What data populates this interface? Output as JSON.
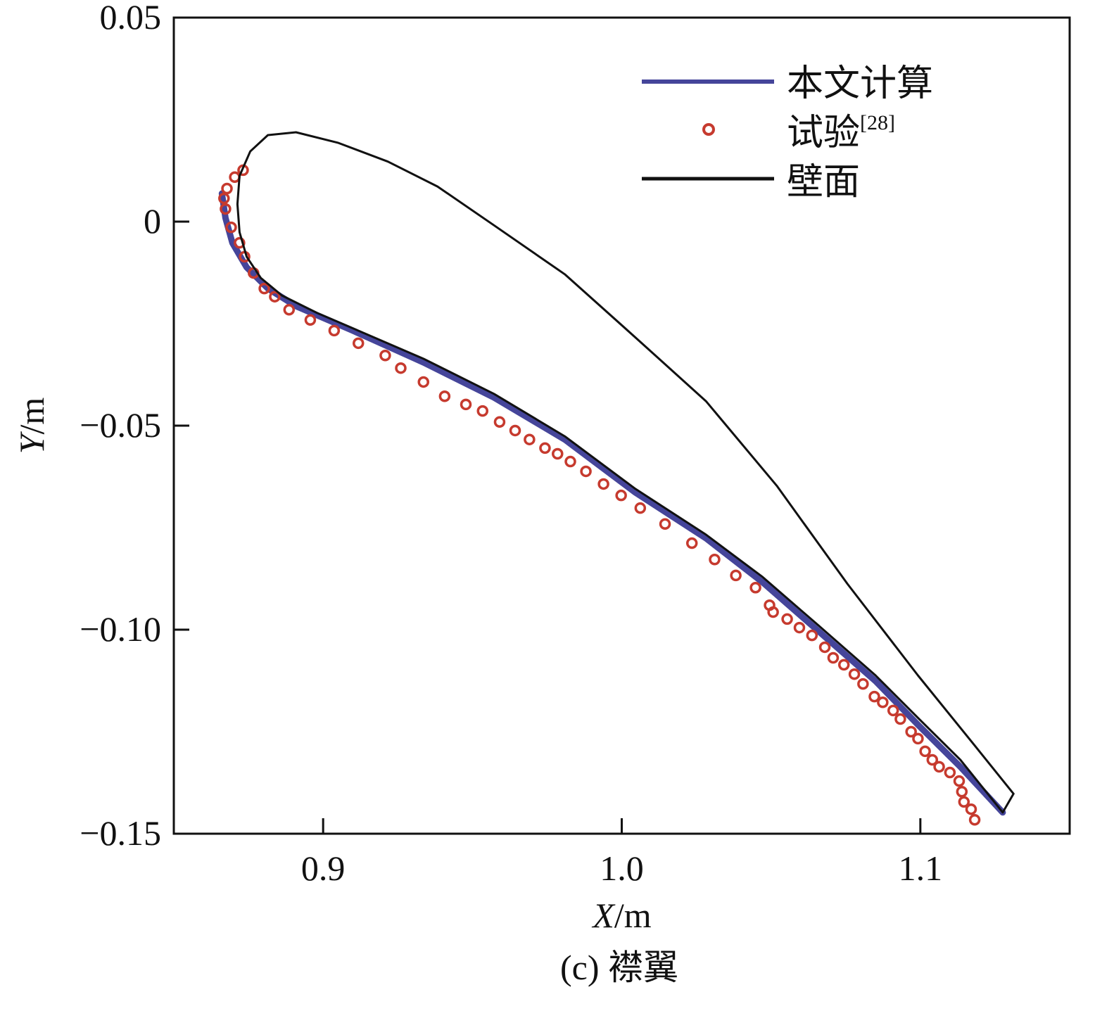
{
  "chart_data": {
    "type": "line",
    "title": "",
    "caption": "(c) 襟翼",
    "xlabel_var": "X",
    "xlabel_unit": "/m",
    "ylabel_var": "Y",
    "ylabel_unit": "/m",
    "xlim": [
      0.85,
      1.15
    ],
    "ylim": [
      -0.15,
      0.05
    ],
    "xticks": [
      0.9,
      1.0,
      1.1
    ],
    "xtick_labels": [
      "0.9",
      "1.0",
      "1.1"
    ],
    "yticks": [
      0.05,
      0,
      -0.05,
      -0.1,
      -0.15
    ],
    "ytick_labels": [
      "0.05",
      "0",
      "−0.05",
      "−0.10",
      "−0.15"
    ],
    "legend_position": "top-right",
    "colors": {
      "computed": "#45459a",
      "experiment": "#c63a2e",
      "wall": "#111111"
    },
    "series": [
      {
        "name": "本文计算",
        "kind": "line",
        "x": [
          0.8661,
          0.8673,
          0.8696,
          0.8744,
          0.8815,
          0.8909,
          0.9099,
          0.9336,
          0.9572,
          0.9809,
          1.0046,
          1.0282,
          1.0472,
          1.0661,
          1.085,
          1.0992,
          1.1134,
          1.1276
        ],
        "y": [
          0.0069,
          0.0009,
          -0.0052,
          -0.0112,
          -0.0164,
          -0.0207,
          -0.0267,
          -0.0345,
          -0.0431,
          -0.0534,
          -0.0664,
          -0.0776,
          -0.0884,
          -0.1005,
          -0.1126,
          -0.1233,
          -0.1336,
          -0.1448
        ]
      },
      {
        "name": "试验",
        "name_sup": "[28]",
        "kind": "scatter",
        "x": [
          0.8732,
          0.8704,
          0.8678,
          0.8668,
          0.8673,
          0.8692,
          0.872,
          0.8737,
          0.8767,
          0.8803,
          0.8838,
          0.8886,
          0.8957,
          0.9037,
          0.9118,
          0.9208,
          0.926,
          0.9336,
          0.9407,
          0.9478,
          0.9534,
          0.9591,
          0.9643,
          0.9691,
          0.9743,
          0.9785,
          0.9828,
          0.988,
          0.9939,
          0.9998,
          1.0062,
          1.0145,
          1.0235,
          1.0311,
          1.0382,
          1.0448,
          1.0495,
          1.0507,
          1.0554,
          1.0595,
          1.0637,
          1.068,
          1.0708,
          1.0744,
          1.0779,
          1.0808,
          1.0846,
          1.0874,
          1.0909,
          1.0933,
          1.0969,
          1.0992,
          1.1016,
          1.104,
          1.1063,
          1.1099,
          1.113,
          1.1139,
          1.1146,
          1.117,
          1.1182
        ],
        "y": [
          0.0126,
          0.0109,
          0.0081,
          0.0057,
          0.0031,
          -0.0014,
          -0.0052,
          -0.0086,
          -0.0126,
          -0.0164,
          -0.0184,
          -0.0216,
          -0.0241,
          -0.0267,
          -0.0298,
          -0.0328,
          -0.0359,
          -0.0393,
          -0.0428,
          -0.0448,
          -0.0464,
          -0.0491,
          -0.0512,
          -0.0534,
          -0.0555,
          -0.0569,
          -0.0588,
          -0.0612,
          -0.0643,
          -0.0671,
          -0.0702,
          -0.0741,
          -0.0788,
          -0.0828,
          -0.0867,
          -0.0897,
          -0.094,
          -0.0957,
          -0.0974,
          -0.0995,
          -0.1014,
          -0.1043,
          -0.1069,
          -0.1086,
          -0.1109,
          -0.1133,
          -0.1164,
          -0.1178,
          -0.1198,
          -0.1219,
          -0.125,
          -0.1267,
          -0.1298,
          -0.1319,
          -0.1336,
          -0.135,
          -0.1371,
          -0.1397,
          -0.1422,
          -0.144,
          -0.1466
        ]
      },
      {
        "name": "壁面",
        "kind": "line",
        "x": [
          1.1312,
          1.1182,
          1.0992,
          1.0756,
          1.0519,
          1.0282,
          1.0046,
          0.9809,
          0.9572,
          0.9383,
          0.9217,
          0.9051,
          0.8909,
          0.8815,
          0.8756,
          0.872,
          0.8713,
          0.872,
          0.8744,
          0.8791,
          0.8862,
          0.898,
          0.9146,
          0.9336,
          0.9572,
          0.9809,
          1.0046,
          1.0282,
          1.0472,
          1.0661,
          1.085,
          1.0992,
          1.1134,
          1.1276,
          1.1312
        ],
        "y": [
          -0.1402,
          -0.1284,
          -0.1112,
          -0.0888,
          -0.0647,
          -0.044,
          -0.0284,
          -0.0129,
          -0.0009,
          0.0086,
          0.0147,
          0.0193,
          0.0219,
          0.0212,
          0.0172,
          0.0112,
          0.0043,
          -0.0026,
          -0.0086,
          -0.0138,
          -0.0181,
          -0.0224,
          -0.0276,
          -0.0336,
          -0.0422,
          -0.0526,
          -0.0655,
          -0.0767,
          -0.0871,
          -0.0991,
          -0.1112,
          -0.1216,
          -0.1319,
          -0.1448,
          -0.1402
        ]
      }
    ]
  }
}
